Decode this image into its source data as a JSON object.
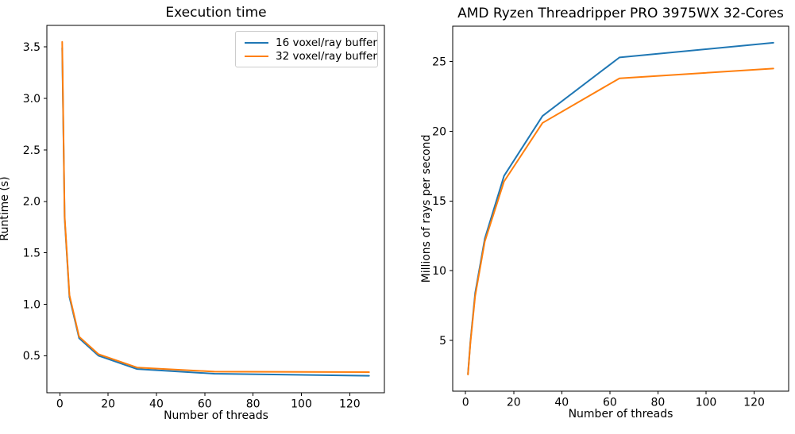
{
  "figure": {
    "background": "#ffffff",
    "text_color": "#000000",
    "spine_color": "#000000"
  },
  "chart_data": [
    {
      "type": "line",
      "title": "Execution time",
      "xlabel": "Number of threads",
      "ylabel": "Runtime (s)",
      "x": [
        1,
        2,
        4,
        8,
        16,
        32,
        64,
        128
      ],
      "series": [
        {
          "name": "16 voxel/ray buffer",
          "color": "#1f77b4",
          "values": [
            3.49,
            1.84,
            1.07,
            0.67,
            0.5,
            0.37,
            0.325,
            0.305
          ]
        },
        {
          "name": "32 voxel/ray buffer",
          "color": "#ff7f0e",
          "values": [
            3.55,
            1.86,
            1.09,
            0.685,
            0.515,
            0.385,
            0.345,
            0.34
          ]
        }
      ],
      "xlim": [
        -5.35,
        134.35
      ],
      "ylim": [
        0.14,
        3.71
      ],
      "xticks": [
        0,
        20,
        40,
        60,
        80,
        100,
        120
      ],
      "xtick_labels": [
        "0",
        "20",
        "40",
        "60",
        "80",
        "100",
        "120"
      ],
      "yticks": [
        0.5,
        1.0,
        1.5,
        2.0,
        2.5,
        3.0,
        3.5
      ],
      "ytick_labels": [
        "0.5",
        "1.0",
        "1.5",
        "2.0",
        "2.5",
        "3.0",
        "3.5"
      ],
      "grid": false,
      "legend": {
        "visible": true,
        "position": "upper right"
      }
    },
    {
      "type": "line",
      "title": "AMD Ryzen Threadripper PRO 3975WX 32-Cores",
      "xlabel": "Number of threads",
      "ylabel": "Millions of rays per second",
      "x": [
        1,
        2,
        4,
        8,
        16,
        32,
        64,
        128
      ],
      "series": [
        {
          "name": "16 voxel/ray buffer",
          "color": "#1f77b4",
          "values": [
            2.6,
            4.9,
            8.4,
            12.3,
            16.8,
            21.1,
            25.3,
            26.35
          ]
        },
        {
          "name": "32 voxel/ray buffer",
          "color": "#ff7f0e",
          "values": [
            2.55,
            4.8,
            8.2,
            12.1,
            16.4,
            20.6,
            23.8,
            24.5
          ]
        }
      ],
      "xlim": [
        -5.35,
        134.35
      ],
      "ylim": [
        1.36,
        27.54
      ],
      "xticks": [
        0,
        20,
        40,
        60,
        80,
        100,
        120
      ],
      "xtick_labels": [
        "0",
        "20",
        "40",
        "60",
        "80",
        "100",
        "120"
      ],
      "yticks": [
        5,
        10,
        15,
        20,
        25
      ],
      "ytick_labels": [
        "5",
        "10",
        "15",
        "20",
        "25"
      ],
      "grid": false,
      "legend": {
        "visible": false
      }
    }
  ]
}
